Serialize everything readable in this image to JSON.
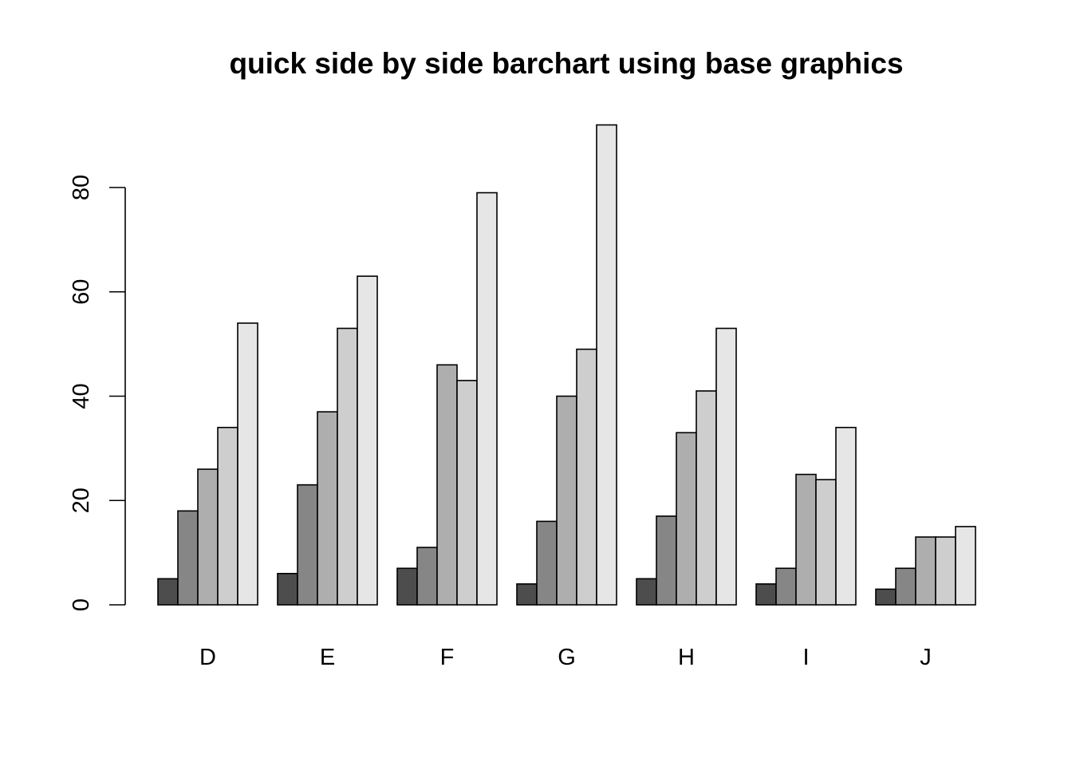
{
  "chart_data": {
    "type": "bar",
    "title": "quick side by side barchart using base graphics",
    "xlabel": "",
    "ylabel": "",
    "categories": [
      "D",
      "E",
      "F",
      "G",
      "H",
      "I",
      "J"
    ],
    "series": [
      {
        "color": "#4d4d4d",
        "values": [
          5,
          6,
          7,
          4,
          5,
          4,
          3
        ]
      },
      {
        "color": "#868686",
        "values": [
          18,
          23,
          11,
          16,
          17,
          7,
          7
        ]
      },
      {
        "color": "#aeaeae",
        "values": [
          26,
          37,
          46,
          40,
          33,
          25,
          13
        ]
      },
      {
        "color": "#cecece",
        "values": [
          34,
          53,
          43,
          49,
          41,
          24,
          13
        ]
      },
      {
        "color": "#e6e6e6",
        "values": [
          54,
          63,
          79,
          92,
          53,
          34,
          15
        ]
      }
    ],
    "yticks": [
      0,
      20,
      40,
      60,
      80
    ],
    "ylim": [
      0,
      92
    ],
    "grid": false,
    "legend": "none"
  }
}
